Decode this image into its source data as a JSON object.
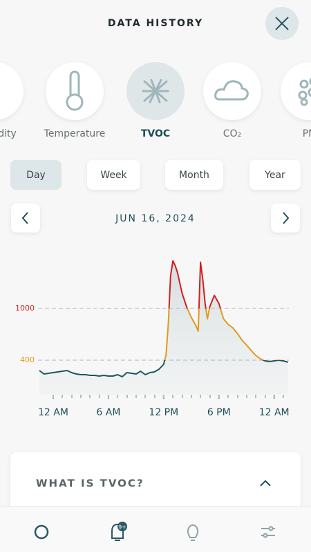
{
  "header": {
    "title": "DATA HISTORY"
  },
  "sensors": [
    "Humidity",
    "Temperature",
    "TVOC",
    "CO₂",
    "PM"
  ],
  "selected_sensor": 2,
  "periods": [
    "Day",
    "Week",
    "Month",
    "Year"
  ],
  "selected_period": 0,
  "date": "JUN 16, 2024",
  "chart_data": {
    "type": "area",
    "x": [
      -1.5,
      -1,
      -0.5,
      0,
      0.5,
      1,
      1.5,
      2,
      2.5,
      3,
      3.5,
      4,
      4.5,
      5,
      5.5,
      6,
      6.5,
      7,
      7.5,
      8,
      8.5,
      9,
      9.5,
      10,
      10.5,
      11,
      11.5,
      12,
      12.25,
      12.5,
      12.75,
      13,
      13.25,
      13.5,
      14,
      14.5,
      15,
      15.5,
      15.75,
      16,
      16.25,
      16.5,
      16.75,
      17,
      17.5,
      18,
      18.5,
      19,
      19.5,
      20,
      20.5,
      21,
      21.5,
      22,
      22.5,
      23,
      23.5,
      24,
      24.5,
      25,
      25.5
    ],
    "values": [
      280,
      240,
      248,
      256,
      264,
      272,
      280,
      256,
      240,
      232,
      232,
      224,
      224,
      216,
      224,
      216,
      216,
      232,
      208,
      256,
      248,
      240,
      272,
      232,
      256,
      264,
      296,
      352,
      456,
      816,
      1376,
      1552,
      1496,
      1416,
      1176,
      1016,
      896,
      800,
      736,
      1536,
      1336,
      1056,
      880,
      1016,
      1152,
      1056,
      880,
      816,
      776,
      712,
      632,
      576,
      512,
      456,
      416,
      392,
      384,
      392,
      400,
      392,
      376
    ],
    "xlim": [
      -1.65,
      25.6
    ],
    "ylim": [
      0,
      1600
    ],
    "xticks": [
      {
        "value": 0,
        "label": "12 AM"
      },
      {
        "value": 6,
        "label": "6 AM"
      },
      {
        "value": 12,
        "label": "12 PM"
      },
      {
        "value": 18,
        "label": "6 PM"
      },
      {
        "value": 24,
        "label": "12 AM"
      }
    ],
    "yticks": [
      400,
      1000
    ],
    "colors": [
      "#1e5561",
      "#e09a1a",
      "#d11f1f"
    ]
  },
  "info": {
    "title": "WHAT IS TVOC?"
  },
  "nav": {
    "badge": "9+"
  }
}
